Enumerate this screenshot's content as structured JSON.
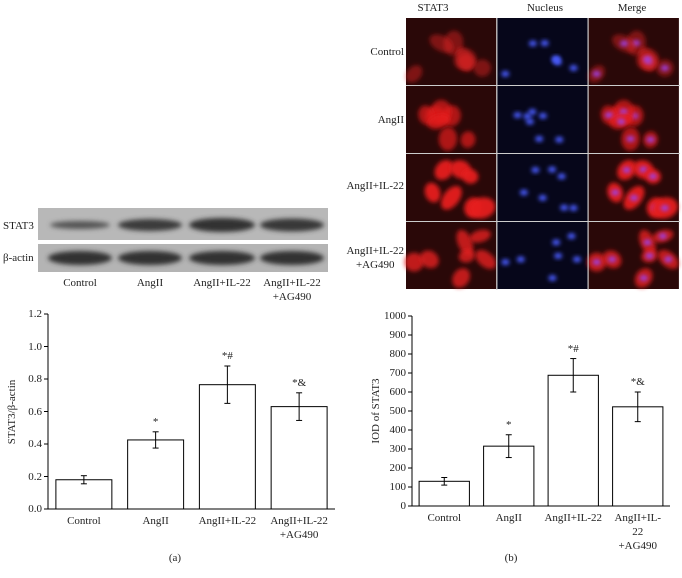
{
  "blot": {
    "rows": [
      "STAT3",
      "β-actin"
    ],
    "lanes": [
      "Control",
      "AngII",
      "AngII+IL-22",
      "AngII+IL-22\n+AG490"
    ]
  },
  "micrograph": {
    "columns": [
      "STAT3",
      "Nucleus",
      "Merge"
    ],
    "rows": [
      "Control",
      "AngII",
      "AngII+IL-22",
      "AngII+IL-22\n+AG490"
    ]
  },
  "panel_labels": [
    "(a)",
    "(b)"
  ],
  "chart_data": [
    {
      "type": "bar",
      "y_label": "STAT3/β-actin",
      "categories": [
        "Control",
        "AngII",
        "AngII+IL-22",
        "AngII+IL-22\n+AG490"
      ],
      "values": [
        0.18,
        0.425,
        0.765,
        0.63
      ],
      "errors": [
        0.025,
        0.05,
        0.115,
        0.085
      ],
      "annotations": [
        null,
        "*",
        "*#",
        "*&"
      ],
      "color": "#ffffff",
      "ylim": [
        0,
        1.2
      ],
      "yticks": [
        {
          "value": 0,
          "label": "0.0"
        },
        0.2,
        0.4,
        0.6,
        0.8,
        {
          "value": 1,
          "label": "1.0"
        },
        1.2
      ]
    },
    {
      "type": "bar",
      "y_label": "IOD of STAT3",
      "categories": [
        "Control",
        "AngII",
        "AngII+IL-22",
        "AngII+IL-22\n+AG490"
      ],
      "values": [
        130,
        315,
        688,
        522
      ],
      "errors": [
        20,
        60,
        88,
        78
      ],
      "annotations": [
        null,
        "*",
        "*#",
        "*&"
      ],
      "color": "#ffffff",
      "ylim": [
        0,
        1000
      ],
      "yticks": [
        0,
        100,
        200,
        300,
        400,
        500,
        600,
        700,
        800,
        900,
        1000
      ]
    }
  ]
}
